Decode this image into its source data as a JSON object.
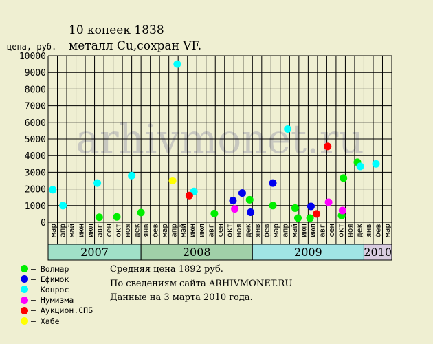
{
  "title_line1": "10 копеек 1838",
  "title_line2": "металл Cu,сохран VF.",
  "watermark": "arhivmonet.ru",
  "legend": [
    {
      "name": "Волмар",
      "color": "#00ee00"
    },
    {
      "name": "Ефимок",
      "color": "#0000ee"
    },
    {
      "name": "Конрос",
      "color": "#00ffff"
    },
    {
      "name": "Нумизма",
      "color": "#ff00ff"
    },
    {
      "name": "Аукцион.СПБ",
      "color": "#ff0000"
    },
    {
      "name": "Хабе",
      "color": "#ffff00"
    }
  ],
  "info": {
    "average": "Средняя цена 1892 руб.",
    "source": "По  сведениям сайта ARHIVMONET.RU",
    "date": "Данные на 3 марта 2010 года."
  },
  "chart_data": {
    "type": "scatter",
    "ylabel": "цена, руб.",
    "ylim": [
      0,
      10000
    ],
    "yticks": [
      0,
      1000,
      2000,
      3000,
      4000,
      5000,
      6000,
      7000,
      8000,
      9000,
      10000
    ],
    "grid": true,
    "months": [
      "мар",
      "апр",
      "май",
      "июн",
      "июл",
      "авг",
      "сен",
      "окт",
      "ноя",
      "дек",
      "янв",
      "фев",
      "мар",
      "апр",
      "май",
      "июн",
      "июл",
      "авг",
      "сен",
      "окт",
      "ноя",
      "дек",
      "янв",
      "фев",
      "мар",
      "апр",
      "май",
      "июн",
      "июл",
      "авг",
      "сен",
      "окт",
      "ноя",
      "дек",
      "янв",
      "фев",
      "мар"
    ],
    "years": [
      {
        "label": "2007",
        "start": 0,
        "count": 10,
        "color": "#a0e0c8"
      },
      {
        "label": "2008",
        "start": 10,
        "count": 12,
        "color": "#a0d0a8"
      },
      {
        "label": "2009",
        "start": 22,
        "count": 12,
        "color": "#a0e4e4"
      },
      {
        "label": "2010",
        "start": 34,
        "count": 3,
        "color": "#d8cce0"
      }
    ],
    "series": [
      {
        "name": "Волмар",
        "color": "#00ee00",
        "points": [
          {
            "x": 5.0,
            "y": 300
          },
          {
            "x": 6.9,
            "y": 320
          },
          {
            "x": 9.5,
            "y": 580
          },
          {
            "x": 17.4,
            "y": 520
          },
          {
            "x": 21.2,
            "y": 1350
          },
          {
            "x": 23.7,
            "y": 1000
          },
          {
            "x": 26.1,
            "y": 850
          },
          {
            "x": 26.4,
            "y": 250
          },
          {
            "x": 27.7,
            "y": 250
          },
          {
            "x": 31.1,
            "y": 400
          },
          {
            "x": 31.3,
            "y": 2650
          },
          {
            "x": 32.8,
            "y": 3600
          }
        ]
      },
      {
        "name": "Ефимок",
        "color": "#0000ee",
        "points": [
          {
            "x": 19.4,
            "y": 1300
          },
          {
            "x": 20.4,
            "y": 1750
          },
          {
            "x": 21.3,
            "y": 600
          },
          {
            "x": 23.7,
            "y": 2350
          },
          {
            "x": 27.8,
            "y": 950
          }
        ]
      },
      {
        "name": "Конрос",
        "color": "#00ffff",
        "points": [
          {
            "x": 0.0,
            "y": 1950
          },
          {
            "x": 1.1,
            "y": 1000
          },
          {
            "x": 4.8,
            "y": 2350
          },
          {
            "x": 8.5,
            "y": 2800
          },
          {
            "x": 13.4,
            "y": 9500
          },
          {
            "x": 15.2,
            "y": 1850
          },
          {
            "x": 25.3,
            "y": 5600
          },
          {
            "x": 33.1,
            "y": 3350
          },
          {
            "x": 34.8,
            "y": 3500
          }
        ]
      },
      {
        "name": "Нумизма",
        "color": "#ff00ff",
        "points": [
          {
            "x": 19.6,
            "y": 800
          },
          {
            "x": 29.7,
            "y": 1200
          },
          {
            "x": 31.2,
            "y": 700
          }
        ]
      },
      {
        "name": "Аукцион.СПБ",
        "color": "#ff0000",
        "points": [
          {
            "x": 14.7,
            "y": 1600
          },
          {
            "x": 28.4,
            "y": 500
          },
          {
            "x": 29.6,
            "y": 4550
          }
        ]
      },
      {
        "name": "Хабе",
        "color": "#ffff00",
        "points": [
          {
            "x": 12.9,
            "y": 2500
          }
        ]
      }
    ]
  }
}
